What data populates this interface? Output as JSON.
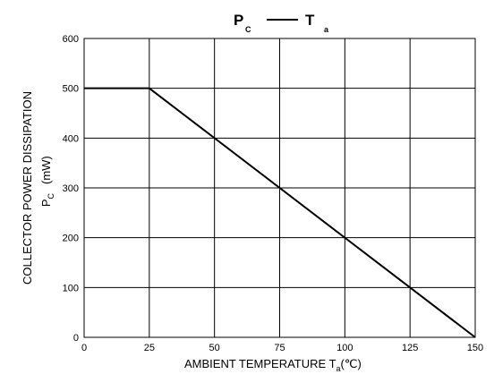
{
  "chart_data": {
    "type": "line",
    "title": {
      "left_symbol": "P",
      "left_sub": "C",
      "right_symbol": "T",
      "right_sub": "a"
    },
    "xlabel": {
      "main": "AMBIENT TEMPERATURE T",
      "sub": "a",
      "unit": "(℃)"
    },
    "ylabel": {
      "line1": "COLLECTOR POWER DISSIPATION",
      "line2_symbol": "P",
      "line2_sub": "C",
      "line2_unit": "(mW)"
    },
    "xlim": [
      0,
      150
    ],
    "ylim": [
      0,
      600
    ],
    "x_ticks": [
      0,
      25,
      50,
      75,
      100,
      125,
      150
    ],
    "y_ticks": [
      0,
      100,
      200,
      300,
      400,
      500,
      600
    ],
    "grid": true,
    "series": [
      {
        "x": [
          0,
          25,
          150
        ],
        "y": [
          500,
          500,
          0
        ]
      }
    ]
  }
}
